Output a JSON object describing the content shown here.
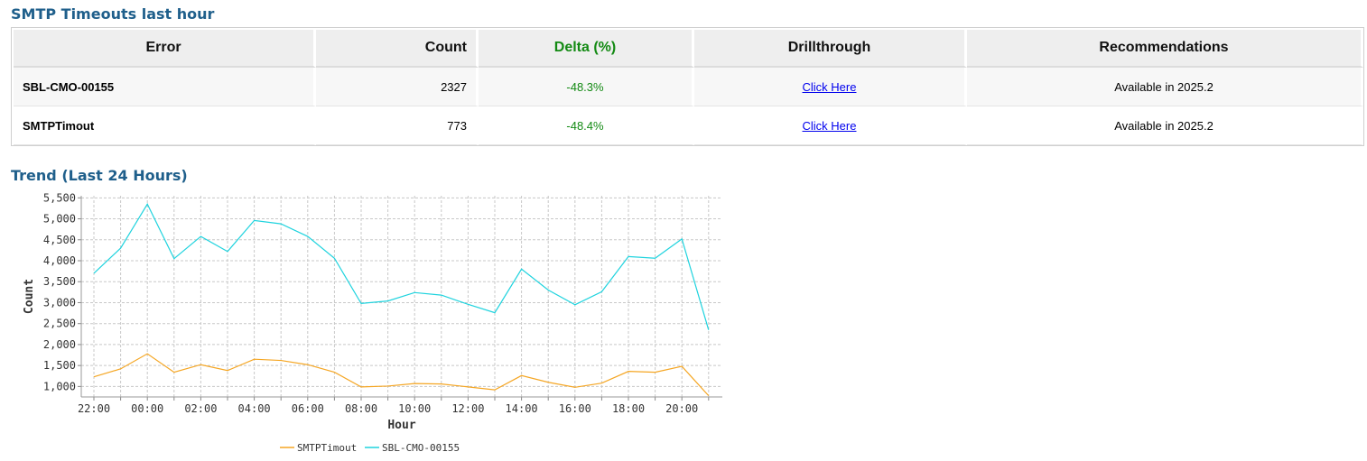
{
  "header": {
    "title": "SMTP Timeouts last hour",
    "trend_title": "Trend (Last 24 Hours)"
  },
  "table": {
    "columns": [
      "Error",
      "Count",
      "Delta (%)",
      "Drillthrough",
      "Recommendations"
    ],
    "rows": [
      {
        "error": "SBL-CMO-00155",
        "count": "2327",
        "delta": "-48.3%",
        "drill": "Click Here",
        "rec": "Available in 2025.2"
      },
      {
        "error": "SMTPTimout",
        "count": "773",
        "delta": "-48.4%",
        "drill": "Click Here",
        "rec": "Available in 2025.2"
      }
    ]
  },
  "chart_data": {
    "type": "line",
    "xlabel": "Hour",
    "ylabel": "Count",
    "x": [
      "22:00",
      "23:00",
      "00:00",
      "01:00",
      "02:00",
      "03:00",
      "04:00",
      "05:00",
      "06:00",
      "07:00",
      "08:00",
      "09:00",
      "10:00",
      "11:00",
      "12:00",
      "13:00",
      "14:00",
      "15:00",
      "16:00",
      "17:00",
      "18:00",
      "19:00",
      "20:00",
      "21:00"
    ],
    "xticks": [
      "22:00",
      "00:00",
      "02:00",
      "04:00",
      "06:00",
      "08:00",
      "10:00",
      "12:00",
      "14:00",
      "16:00",
      "18:00",
      "20:00"
    ],
    "yticks": [
      "1,000",
      "1,500",
      "2,000",
      "2,500",
      "3,000",
      "3,500",
      "4,000",
      "4,500",
      "5,000",
      "5,500"
    ],
    "ylim": [
      750,
      5550
    ],
    "grid": true,
    "legend": "bottom-center",
    "series": [
      {
        "name": "SMTPTimout",
        "color": "#f5a623",
        "values": [
          1230,
          1420,
          1780,
          1340,
          1520,
          1380,
          1650,
          1620,
          1520,
          1340,
          990,
          1010,
          1070,
          1060,
          990,
          920,
          1260,
          1100,
          980,
          1080,
          1360,
          1340,
          1480,
          780
        ]
      },
      {
        "name": "SBL-CMO-00155",
        "color": "#1fd3de",
        "values": [
          3700,
          4300,
          5350,
          4050,
          4580,
          4220,
          4960,
          4880,
          4580,
          4060,
          2980,
          3040,
          3240,
          3180,
          2960,
          2760,
          3800,
          3300,
          2950,
          3260,
          4100,
          4060,
          4520,
          2350
        ]
      }
    ]
  }
}
